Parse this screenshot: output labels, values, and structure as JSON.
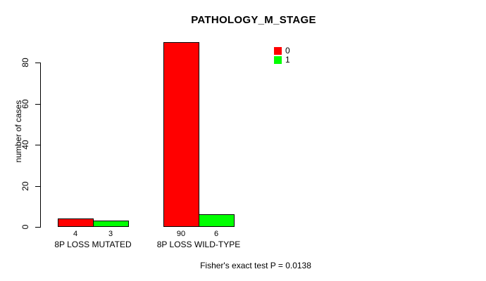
{
  "chart_data": {
    "type": "bar",
    "title": "PATHOLOGY_M_STAGE",
    "ylabel": "number of cases",
    "xlabel": "",
    "categories": [
      "8P LOSS MUTATED",
      "8P LOSS WILD-TYPE"
    ],
    "series": [
      {
        "name": "0",
        "color": "#ff0000",
        "values": [
          4,
          90
        ]
      },
      {
        "name": "1",
        "color": "#00ff00",
        "values": [
          3,
          6
        ]
      }
    ],
    "bar_value_labels": [
      [
        "4",
        "90"
      ],
      [
        "3",
        "6"
      ]
    ],
    "yticks": [
      0,
      20,
      40,
      60,
      80
    ],
    "ylim": [
      0,
      93
    ],
    "grid": false,
    "legend_position": "top-right",
    "annotation": "Fisher's exact test P = 0.0138"
  },
  "colors": {
    "bar_border": "#000000",
    "axis": "#000000",
    "text": "#000000",
    "background": "#ffffff"
  }
}
